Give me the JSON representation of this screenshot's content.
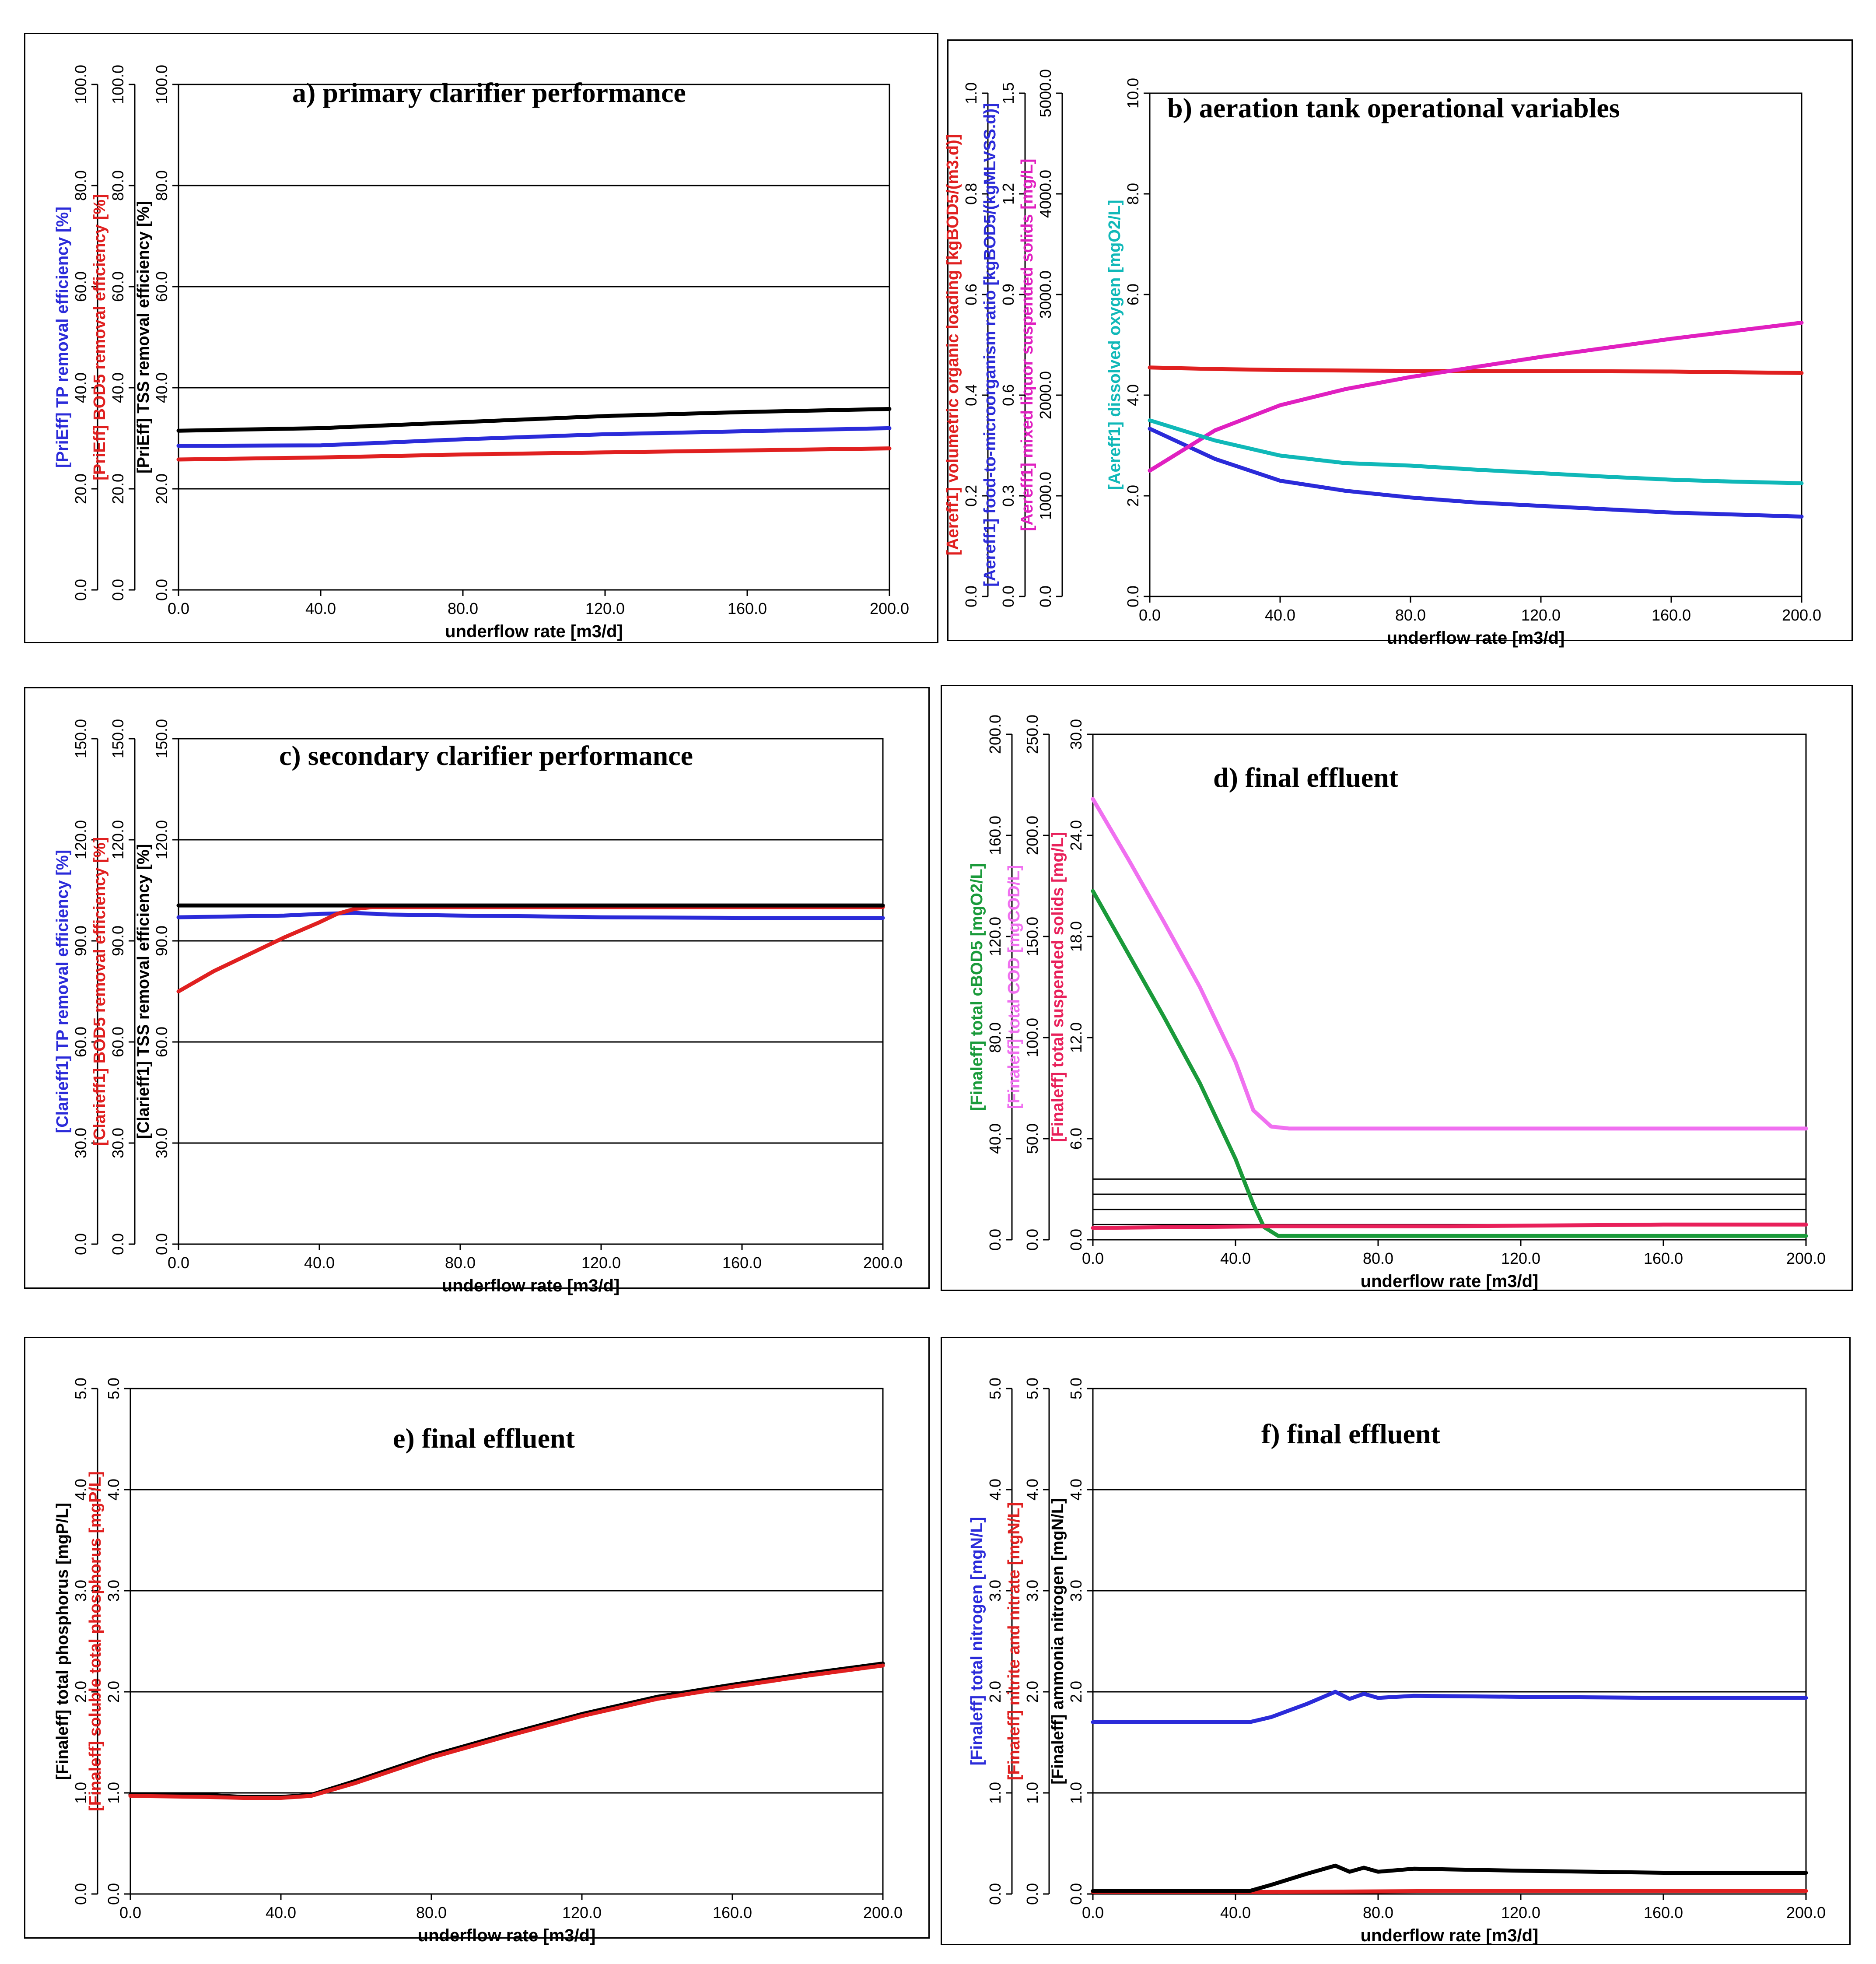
{
  "charts": [
    {
      "title": "a) primary clarifier performance",
      "xlabel": "underflow rate [m3/d]",
      "xticks": [
        "0.0",
        "40.0",
        "80.0",
        "120.0",
        "160.0",
        "200.0"
      ],
      "gridlines": [
        20,
        40,
        60,
        80
      ],
      "axes": [
        {
          "label": "[PriEff] TP removal efficiency [%]",
          "color": "#2b2bd9",
          "ticks": [
            "0.0",
            "20.0",
            "40.0",
            "60.0",
            "80.0",
            "100.0"
          ]
        },
        {
          "label": "[PriEff] BOD5 removal efficiency [%]",
          "color": "#e02020",
          "ticks": [
            "0.0",
            "20.0",
            "40.0",
            "60.0",
            "80.0",
            "100.0"
          ]
        },
        {
          "label": "[PriEff] TSS removal efficiency [%]",
          "color": "#000000",
          "ticks": [
            "0.0",
            "20.0",
            "40.0",
            "60.0",
            "80.0",
            "100.0"
          ]
        }
      ]
    },
    {
      "title": "b) aeration tank operational variables",
      "xlabel": "underflow rate [m3/d]",
      "xticks": [
        "0.0",
        "40.0",
        "80.0",
        "120.0",
        "160.0",
        "200.0"
      ],
      "gridlines": [
        2,
        4,
        6,
        8
      ],
      "axes": [
        {
          "label": "[Aereff1] volumetric organic loading [kgBOD5/(m3.d)]",
          "color": "#e02020",
          "ticks": [
            "0.0",
            "0.2",
            "0.4",
            "0.6",
            "0.8",
            "1.0"
          ]
        },
        {
          "label": "[Aereff1] food-to-microorganism ratio [kgBOD5/(kgMLVSS.d)]",
          "color": "#2b2bd9",
          "ticks": [
            "0.0",
            "0.3",
            "0.6",
            "0.9",
            "1.2",
            "1.5"
          ]
        },
        {
          "label": "[Aereff1] mixed liquor suspended solids [mg/L]",
          "color": "#e020c0",
          "ticks": [
            "0.0",
            "1000.0",
            "2000.0",
            "3000.0",
            "4000.0",
            "5000.0"
          ]
        },
        {
          "label": "[Aereff1] dissolved oxygen [mgO2/L]",
          "color": "#10b8b8",
          "ticks": [
            "0.0",
            "2.0",
            "4.0",
            "6.0",
            "8.0",
            "10.0"
          ]
        }
      ]
    },
    {
      "title": "c) secondary clarifier performance",
      "xlabel": "underflow rate [m3/d]",
      "xticks": [
        "0.0",
        "40.0",
        "80.0",
        "120.0",
        "160.0",
        "200.0"
      ],
      "gridlines": [
        30,
        60,
        90,
        120
      ],
      "axes": [
        {
          "label": "[Clarieff1] TP removal efficiency [%]",
          "color": "#2b2bd9",
          "ticks": [
            "0.0",
            "30.0",
            "60.0",
            "90.0",
            "120.0",
            "150.0"
          ]
        },
        {
          "label": "[Clarieff1] BOD5 removal efficiency [%]",
          "color": "#e02020",
          "ticks": [
            "0.0",
            "30.0",
            "60.0",
            "90.0",
            "120.0",
            "150.0"
          ]
        },
        {
          "label": "[Clarieff1] TSS removal efficiency [%]",
          "color": "#000000",
          "ticks": [
            "0.0",
            "30.0",
            "60.0",
            "90.0",
            "120.0",
            "150.0"
          ]
        }
      ]
    },
    {
      "title": "d) final effluent",
      "xlabel": "underflow rate [m3/d]",
      "xticks": [
        "0.0",
        "40.0",
        "80.0",
        "120.0",
        "160.0",
        "200.0"
      ],
      "gridlines": [
        6,
        12,
        18,
        24
      ],
      "axes": [
        {
          "label": "[Finaleff] total cBOD5 [mgO2/L]",
          "color": "#1a9a3a",
          "ticks": [
            "0.0",
            "40.0",
            "80.0",
            "120.0",
            "160.0",
            "200.0"
          ]
        },
        {
          "label": "[Finaleff] total COD [mgCOD/L]",
          "color": "#f070f0",
          "ticks": [
            "0.0",
            "50.0",
            "100.0",
            "150.0",
            "200.0",
            "250.0"
          ]
        },
        {
          "label": "[Finaleff] total suspended solids [mg/L]",
          "color": "#e8205a",
          "ticks": [
            "0.0",
            "6.0",
            "12.0",
            "18.0",
            "24.0",
            "30.0"
          ]
        }
      ]
    },
    {
      "title": "e) final effluent",
      "xlabel": "underflow rate [m3/d]",
      "xticks": [
        "0.0",
        "40.0",
        "80.0",
        "120.0",
        "160.0",
        "200.0"
      ],
      "gridlines": [
        1,
        2,
        3,
        4
      ],
      "axes": [
        {
          "label": "[Finaleff] total phosphorus [mgP/L]",
          "color": "#000000",
          "ticks": [
            "0.0",
            "1.0",
            "2.0",
            "3.0",
            "4.0",
            "5.0"
          ]
        },
        {
          "label": "[Finaleff] soluble total phosphorus [mgP/L]",
          "color": "#e02020",
          "ticks": [
            "0.0",
            "1.0",
            "2.0",
            "3.0",
            "4.0",
            "5.0"
          ]
        }
      ]
    },
    {
      "title": "f) final effluent",
      "xlabel": "underflow rate [m3/d]",
      "xticks": [
        "0.0",
        "40.0",
        "80.0",
        "120.0",
        "160.0",
        "200.0"
      ],
      "gridlines": [
        1,
        2,
        3,
        4
      ],
      "axes": [
        {
          "label": "[Finaleff] total nitrogen [mgN/L]",
          "color": "#2b2bd9",
          "ticks": [
            "0.0",
            "1.0",
            "2.0",
            "3.0",
            "4.0",
            "5.0"
          ]
        },
        {
          "label": "[Finaleff] nitrite and nitrate [mgN/L]",
          "color": "#e02020",
          "ticks": [
            "0.0",
            "1.0",
            "2.0",
            "3.0",
            "4.0",
            "5.0"
          ]
        },
        {
          "label": "[Finaleff] ammonia nitrogen [mgN/L]",
          "color": "#000000",
          "ticks": [
            "0.0",
            "1.0",
            "2.0",
            "3.0",
            "4.0",
            "5.0"
          ]
        }
      ]
    }
  ],
  "chart_data": [
    {
      "type": "line",
      "title": "a) primary clarifier performance",
      "xlabel": "underflow rate [m3/d]",
      "xlim": [
        0,
        200
      ],
      "ylim": [
        0,
        100
      ],
      "grid": true,
      "series": [
        {
          "axis": 0,
          "color": "#2b2bd9",
          "x": [
            0,
            40,
            80,
            120,
            160,
            200
          ],
          "y": [
            28.5,
            28.6,
            29.8,
            30.8,
            31.4,
            32.0
          ]
        },
        {
          "axis": 1,
          "color": "#e02020",
          "x": [
            0,
            40,
            80,
            120,
            160,
            200
          ],
          "y": [
            25.8,
            26.2,
            26.8,
            27.2,
            27.6,
            28.0
          ]
        },
        {
          "axis": 2,
          "color": "#000000",
          "x": [
            0,
            40,
            80,
            120,
            160,
            200
          ],
          "y": [
            31.5,
            32.0,
            33.2,
            34.4,
            35.2,
            35.8
          ]
        }
      ]
    },
    {
      "type": "line",
      "title": "b) aeration tank operational variables",
      "xlabel": "underflow rate [m3/d]",
      "xlim": [
        0,
        200
      ],
      "grid": true,
      "series": [
        {
          "axis": 0,
          "color": "#e02020",
          "ylim": [
            0,
            1
          ],
          "x": [
            0,
            20,
            40,
            80,
            120,
            160,
            200
          ],
          "y": [
            0.455,
            0.452,
            0.45,
            0.448,
            0.448,
            0.447,
            0.444
          ]
        },
        {
          "axis": 1,
          "color": "#2b2bd9",
          "ylim": [
            0,
            1.5
          ],
          "x": [
            0,
            20,
            40,
            60,
            80,
            100,
            120,
            140,
            160,
            180,
            200
          ],
          "y": [
            0.5,
            0.41,
            0.345,
            0.315,
            0.295,
            0.28,
            0.27,
            0.26,
            0.25,
            0.244,
            0.238
          ]
        },
        {
          "axis": 2,
          "color": "#e020c0",
          "ylim": [
            0,
            5000
          ],
          "x": [
            0,
            20,
            40,
            60,
            80,
            100,
            120,
            140,
            160,
            180,
            200
          ],
          "y": [
            1250,
            1650,
            1900,
            2060,
            2180,
            2280,
            2380,
            2470,
            2560,
            2640,
            2720
          ]
        },
        {
          "axis": 3,
          "color": "#10b8b8",
          "ylim": [
            0,
            10
          ],
          "x": [
            0,
            20,
            40,
            60,
            80,
            100,
            120,
            140,
            160,
            180,
            200
          ],
          "y": [
            3.5,
            3.1,
            2.8,
            2.65,
            2.6,
            2.52,
            2.45,
            2.38,
            2.32,
            2.28,
            2.25
          ]
        }
      ]
    },
    {
      "type": "line",
      "title": "c) secondary clarifier performance",
      "xlabel": "underflow rate [m3/d]",
      "xlim": [
        0,
        200
      ],
      "ylim": [
        0,
        150
      ],
      "grid": true,
      "series": [
        {
          "axis": 0,
          "color": "#2b2bd9",
          "x": [
            0,
            30,
            40,
            50,
            60,
            80,
            100,
            120,
            160,
            200
          ],
          "y": [
            97,
            97.5,
            98,
            98.3,
            97.8,
            97.5,
            97.3,
            97,
            96.8,
            96.8
          ]
        },
        {
          "axis": 1,
          "color": "#e02020",
          "x": [
            0,
            10,
            20,
            30,
            40,
            45,
            50,
            55,
            100,
            150,
            200
          ],
          "y": [
            75,
            81,
            86,
            91,
            95.5,
            98,
            99.5,
            100,
            100,
            100,
            100
          ]
        },
        {
          "axis": 2,
          "color": "#000000",
          "x": [
            0,
            50,
            100,
            150,
            200
          ],
          "y": [
            100.5,
            100.5,
            100.5,
            100.5,
            100.5
          ]
        }
      ]
    },
    {
      "type": "line",
      "title": "d) final effluent",
      "xlabel": "underflow rate [m3/d]",
      "xlim": [
        0,
        200
      ],
      "grid": true,
      "series": [
        {
          "axis": 0,
          "color": "#1a9a3a",
          "ylim": [
            0,
            200
          ],
          "x": [
            0,
            10,
            20,
            30,
            40,
            45,
            48,
            52,
            60,
            100,
            150,
            200
          ],
          "y": [
            138,
            113,
            88,
            62,
            32,
            14,
            5,
            1.5,
            1.5,
            1.5,
            1.5,
            1.5
          ]
        },
        {
          "axis": 1,
          "color": "#f070f0",
          "ylim": [
            0,
            250
          ],
          "x": [
            0,
            10,
            20,
            30,
            40,
            45,
            50,
            55,
            60,
            100,
            150,
            200
          ],
          "y": [
            218,
            188,
            157,
            125,
            88,
            64,
            56,
            55,
            55,
            55,
            55,
            55
          ]
        },
        {
          "axis": 2,
          "color": "#e8205a",
          "ylim": [
            0,
            30
          ],
          "x": [
            0,
            50,
            100,
            160,
            200
          ],
          "y": [
            0.7,
            0.8,
            0.8,
            0.9,
            0.9
          ]
        }
      ]
    },
    {
      "type": "line",
      "title": "e) final effluent",
      "xlabel": "underflow rate [m3/d]",
      "xlim": [
        0,
        200
      ],
      "ylim": [
        0,
        5
      ],
      "grid": true,
      "series": [
        {
          "axis": 0,
          "color": "#000000",
          "x": [
            0,
            20,
            30,
            40,
            48,
            60,
            80,
            100,
            120,
            140,
            160,
            180,
            200
          ],
          "y": [
            0.98,
            0.98,
            0.96,
            0.96,
            0.98,
            1.12,
            1.37,
            1.58,
            1.78,
            1.95,
            2.07,
            2.18,
            2.28
          ]
        },
        {
          "axis": 1,
          "color": "#e02020",
          "x": [
            0,
            20,
            30,
            40,
            48,
            60,
            80,
            100,
            120,
            140,
            160,
            180,
            200
          ],
          "y": [
            0.97,
            0.96,
            0.95,
            0.95,
            0.97,
            1.1,
            1.35,
            1.56,
            1.76,
            1.93,
            2.05,
            2.16,
            2.26
          ]
        }
      ]
    },
    {
      "type": "line",
      "title": "f) final effluent",
      "xlabel": "underflow rate [m3/d]",
      "xlim": [
        0,
        200
      ],
      "ylim": [
        0,
        5
      ],
      "grid": true,
      "series": [
        {
          "axis": 0,
          "color": "#2b2bd9",
          "x": [
            0,
            20,
            44,
            50,
            60,
            68,
            72,
            76,
            80,
            90,
            120,
            160,
            200
          ],
          "y": [
            1.7,
            1.7,
            1.7,
            1.75,
            1.88,
            2.0,
            1.93,
            1.98,
            1.94,
            1.96,
            1.95,
            1.94,
            1.94
          ]
        },
        {
          "axis": 1,
          "color": "#e02020",
          "x": [
            0,
            50,
            100,
            150,
            200
          ],
          "y": [
            0.02,
            0.02,
            0.03,
            0.03,
            0.03
          ]
        },
        {
          "axis": 2,
          "color": "#000000",
          "x": [
            0,
            44,
            50,
            60,
            68,
            72,
            76,
            80,
            90,
            120,
            160,
            200
          ],
          "y": [
            0.03,
            0.03,
            0.09,
            0.2,
            0.28,
            0.22,
            0.26,
            0.22,
            0.25,
            0.23,
            0.21,
            0.21
          ]
        }
      ]
    }
  ]
}
